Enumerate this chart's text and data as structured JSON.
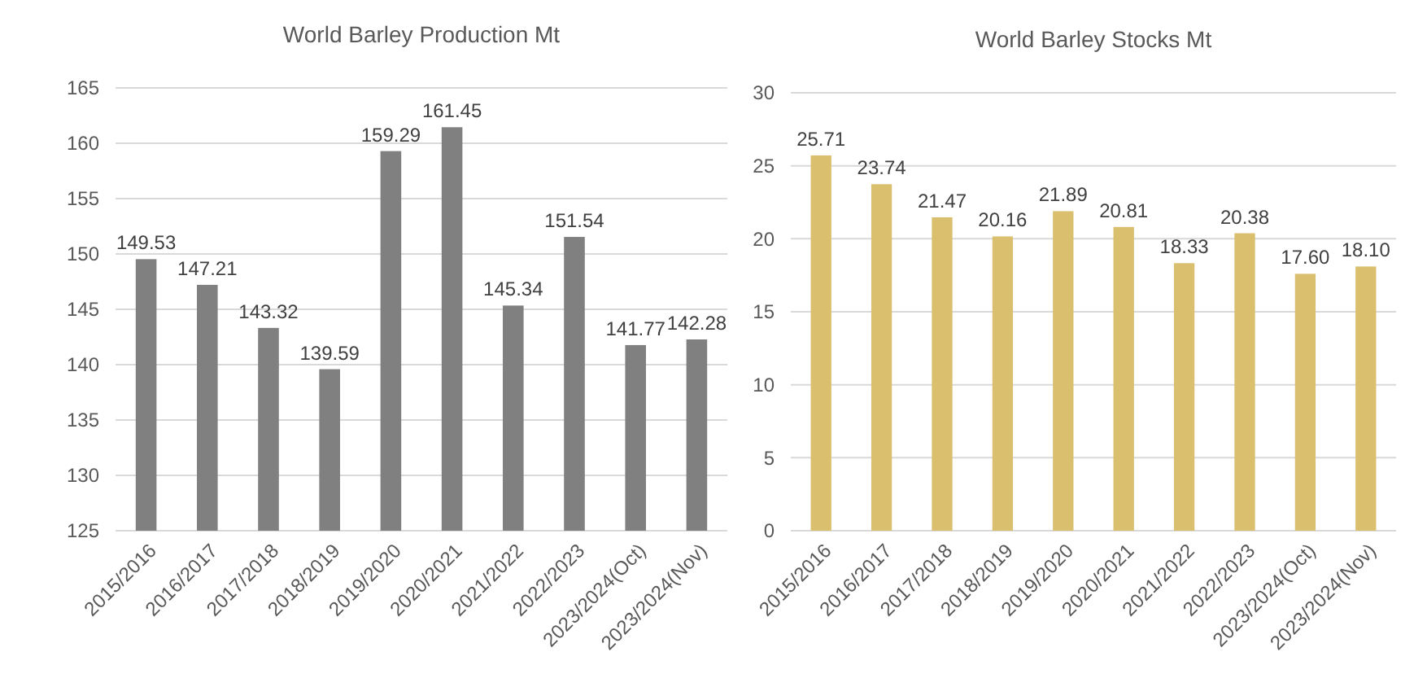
{
  "chart_data": [
    {
      "type": "bar",
      "title": "World Barley Production Mt",
      "categories": [
        "2015/2016",
        "2016/2017",
        "2017/2018",
        "2018/2019",
        "2019/2020",
        "2020/2021",
        "2021/2022",
        "2022/2023",
        "2023/2024(Oct)",
        "2023/2024(Nov)"
      ],
      "values": [
        149.53,
        147.21,
        143.32,
        139.59,
        159.29,
        161.45,
        145.34,
        151.54,
        141.77,
        142.28
      ],
      "value_labels": [
        "149.53",
        "147.21",
        "143.32",
        "139.59",
        "159.29",
        "161.45",
        "145.34",
        "151.54",
        "141.77",
        "142.28"
      ],
      "color": "#808080",
      "ylim": [
        125,
        165
      ],
      "yticks": [
        125,
        130,
        135,
        140,
        145,
        150,
        155,
        160,
        165
      ],
      "grid": "y"
    },
    {
      "type": "bar",
      "title": "World Barley Stocks Mt",
      "categories": [
        "2015/2016",
        "2016/2017",
        "2017/2018",
        "2018/2019",
        "2019/2020",
        "2020/2021",
        "2021/2022",
        "2022/2023",
        "2023/2024(Oct)",
        "2023/2024(Nov)"
      ],
      "values": [
        25.71,
        23.74,
        21.47,
        20.16,
        21.89,
        20.81,
        18.33,
        20.38,
        17.6,
        18.1
      ],
      "value_labels": [
        "25.71",
        "23.74",
        "21.47",
        "20.16",
        "21.89",
        "20.81",
        "18.33",
        "20.38",
        "17.60",
        "18.10"
      ],
      "color": "#d9bf6e",
      "ylim": [
        0,
        30
      ],
      "yticks": [
        0,
        5,
        10,
        15,
        20,
        25,
        30
      ],
      "grid": "y"
    }
  ]
}
